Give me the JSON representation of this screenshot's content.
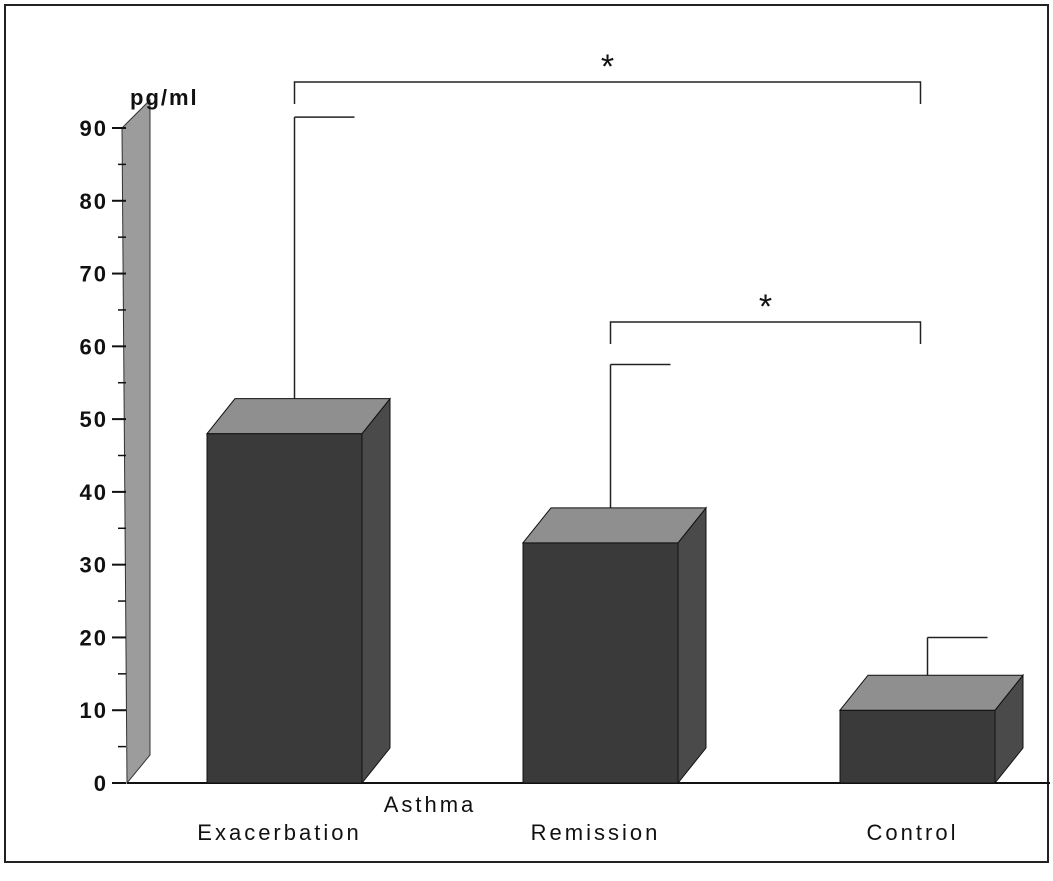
{
  "chart_data": {
    "type": "bar3d",
    "y_label": "pg/ml",
    "group_label": "Asthma",
    "categories": [
      "Exacerbation",
      "Remission",
      "Control"
    ],
    "values": [
      48,
      33,
      10
    ],
    "errors": [
      43.5,
      24.5,
      10
    ],
    "color": "#3a3a3a",
    "ylim": [
      0,
      90
    ],
    "yticks": [
      0,
      10,
      20,
      30,
      40,
      50,
      60,
      70,
      80,
      90
    ],
    "annotations": [
      {
        "text": "*",
        "between": [
          "Exacerbation",
          "Control"
        ]
      },
      {
        "text": "*",
        "between": [
          "Remission",
          "Control"
        ]
      }
    ]
  }
}
